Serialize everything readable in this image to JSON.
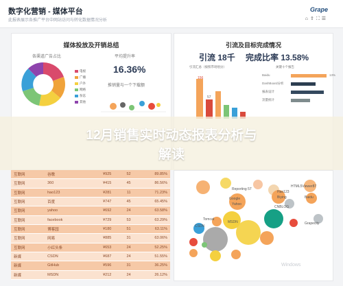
{
  "header": {
    "title": "数字化营销 - 媒体平台",
    "subtitle": "此报表展示各推广平台中网站访问与转化数据情况分析",
    "logo": "Grape",
    "icons": [
      "home-icon",
      "share-icon",
      "fullscreen-icon",
      "menu-icon"
    ]
  },
  "left_panel": {
    "title": "媒体投放及开销总结",
    "donut_title": "各渠道广告占比",
    "avg_title": "平均提升率",
    "avg_value": "16.36%",
    "scatter_title": "推销量与一个下载额",
    "legend": [
      {
        "label": "电视",
        "color": "#d94a6c"
      },
      {
        "label": "广播",
        "color": "#f0a33a"
      },
      {
        "label": "户外",
        "color": "#f4d03f"
      },
      {
        "label": "网络",
        "color": "#7cc576"
      },
      {
        "label": "杂志",
        "color": "#3aa0d8"
      },
      {
        "label": "其他",
        "color": "#8e44ad"
      }
    ]
  },
  "right_panel": {
    "title": "引流及目标完成情况",
    "flow_label": "引流",
    "flow_value": "18千",
    "ratio_label": "完成比率",
    "ratio_value": "13.58%",
    "bar_title": "引流汇总（按照市场划分）",
    "bar_labels": [
      "156",
      "57"
    ],
    "hbar_title": "关键十个报告",
    "hbar_rows": [
      {
        "label": "Baidu",
        "pct": 13,
        "value": "13%"
      },
      {
        "label": "DashBoard分析",
        "pct": 9,
        "value": ""
      },
      {
        "label": "报表设计",
        "pct": 12,
        "value": ""
      },
      {
        "label": "流量统计",
        "pct": 7,
        "value": ""
      }
    ]
  },
  "banner": {
    "title_line1": "12月销售实时动态报表分析与",
    "title_line2": "解读"
  },
  "table": {
    "rows": [
      [
        "互联网",
        "谷歌",
        "¥925",
        "52",
        "89.85%"
      ],
      [
        "互联网",
        "360",
        "¥415",
        "45",
        "86.56%"
      ],
      [
        "互联网",
        "hao123",
        "¥281",
        "11",
        "71.23%"
      ],
      [
        "互联网",
        "百度",
        "¥747",
        "45",
        "65.45%"
      ],
      [
        "互联网",
        "yahoo",
        "¥692",
        "24",
        "63.58%"
      ],
      [
        "互联网",
        "facebook",
        "¥729",
        "53",
        "63.29%"
      ],
      [
        "互联网",
        "博客园",
        "¥180",
        "51",
        "63.11%"
      ],
      [
        "互联网",
        "网易",
        "¥885",
        "31",
        "63.06%"
      ],
      [
        "互联网",
        "小红头条",
        "¥653",
        "24",
        "52.25%"
      ],
      [
        "新媒",
        "CSDN",
        "¥687",
        "24",
        "51.55%"
      ],
      [
        "新媒",
        "GitHub",
        "¥596",
        "31",
        "36.25%"
      ],
      [
        "新媒",
        "MSDN",
        "¥212",
        "24",
        "26.12%"
      ]
    ]
  },
  "bubbles": {
    "labels": [
      "Reporting 57",
      "HTML5Viewer87",
      "Hao123",
      "Biying",
      "Google",
      "Yahoo",
      "Baidu",
      "CNBLOG",
      "Tomcat",
      "MSDN",
      "Grapecity",
      "CSDN"
    ]
  },
  "watermark": "Windows"
}
